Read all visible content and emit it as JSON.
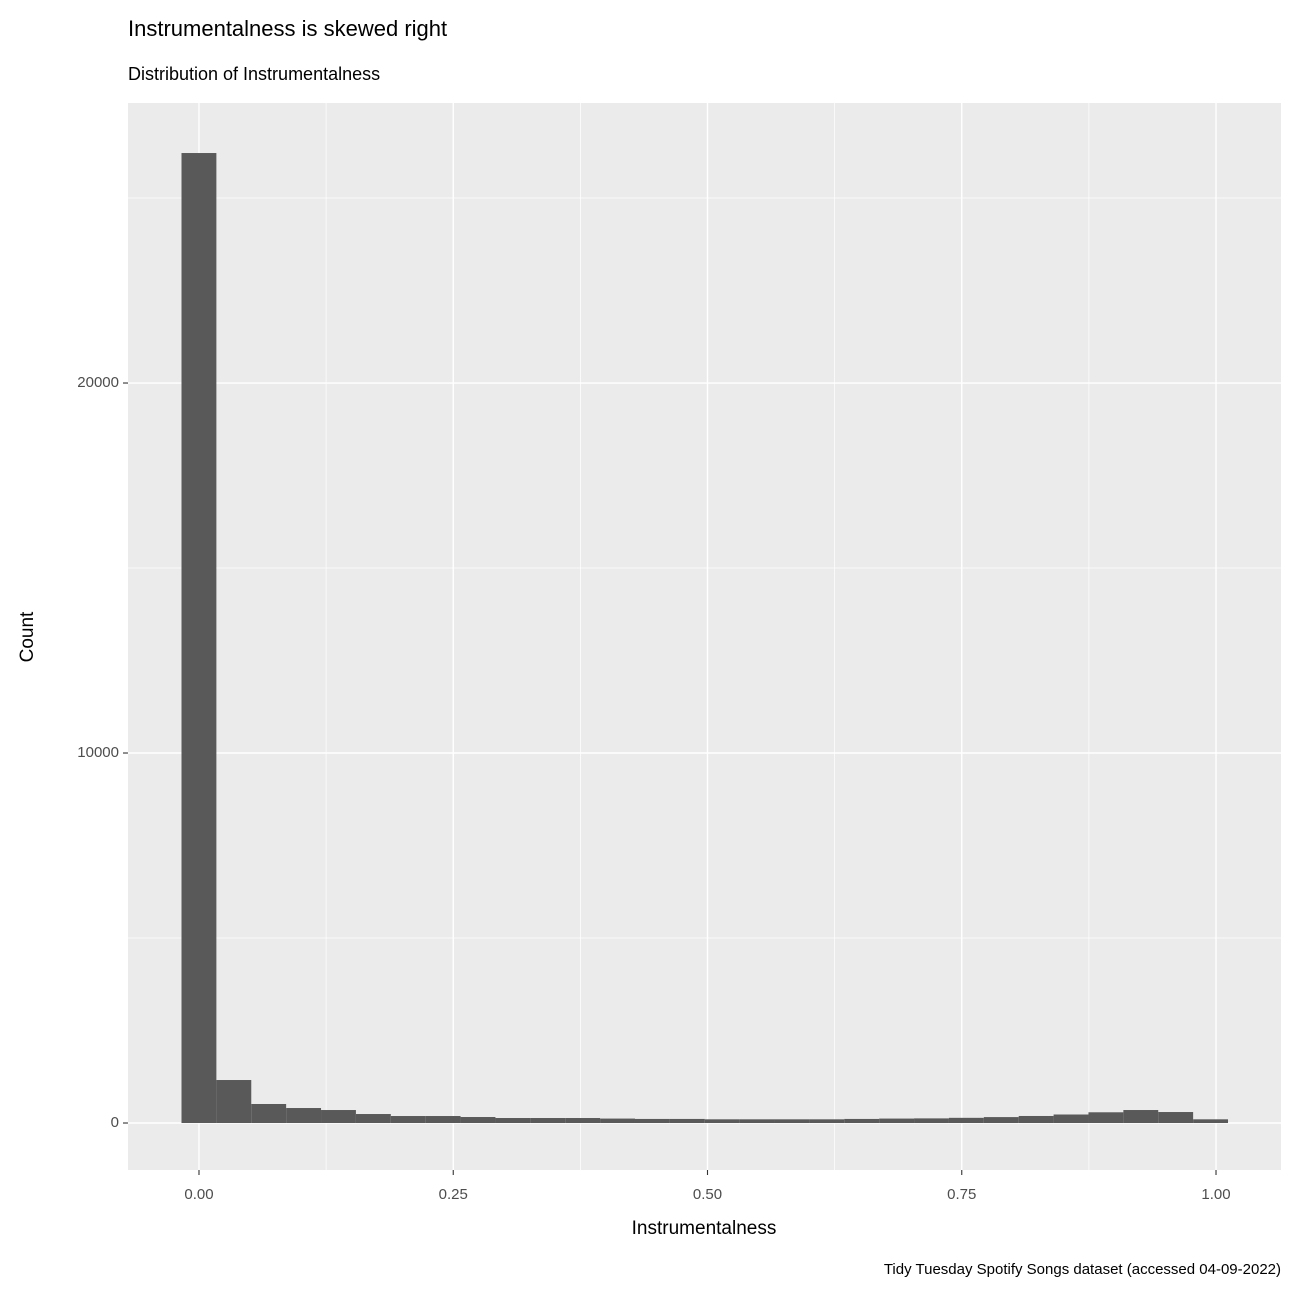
{
  "chart_data": {
    "type": "histogram",
    "title": "Instrumentalness is skewed right",
    "subtitle": "Distribution of Instrumentalness",
    "x_label": "Instrumentalness",
    "y_label": "Count",
    "caption": "Tidy Tuesday Spotify Songs dataset (accessed 04-09-2022)",
    "bins": [
      -0.0172,
      0.0171,
      0.0514,
      0.0857,
      0.12,
      0.1543,
      0.1886,
      0.2229,
      0.2572,
      0.2915,
      0.3258,
      0.3601,
      0.3944,
      0.4287,
      0.463,
      0.4973,
      0.5316,
      0.5659,
      0.6002,
      0.6345,
      0.6688,
      0.7031,
      0.7374,
      0.7717,
      0.806,
      0.8403,
      0.8746,
      0.9089,
      0.9432,
      0.9775,
      1.0118
    ],
    "values": [
      26216,
      1162,
      514,
      405,
      351,
      243,
      189,
      189,
      162,
      135,
      135,
      135,
      120,
      110,
      110,
      100,
      100,
      100,
      100,
      110,
      120,
      125,
      140,
      160,
      190,
      230,
      290,
      351,
      297,
      100,
      0
    ],
    "color": "#595959",
    "xlim": [
      -0.0698,
      1.0639
    ],
    "ylim": [
      -1270,
      27568
    ],
    "xticks": [
      {
        "value": 0,
        "label": "0.00"
      },
      {
        "value": 0.25,
        "label": "0.25"
      },
      {
        "value": 0.5,
        "label": "0.50"
      },
      {
        "value": 0.75,
        "label": "0.75"
      },
      {
        "value": 1,
        "label": "1.00"
      }
    ],
    "yticks": [
      0,
      10000,
      20000
    ],
    "minor_xticks": [
      0.125,
      0.375,
      0.625,
      0.875
    ],
    "minor_yticks": [
      5000,
      15000,
      25000
    ],
    "grid": true
  }
}
